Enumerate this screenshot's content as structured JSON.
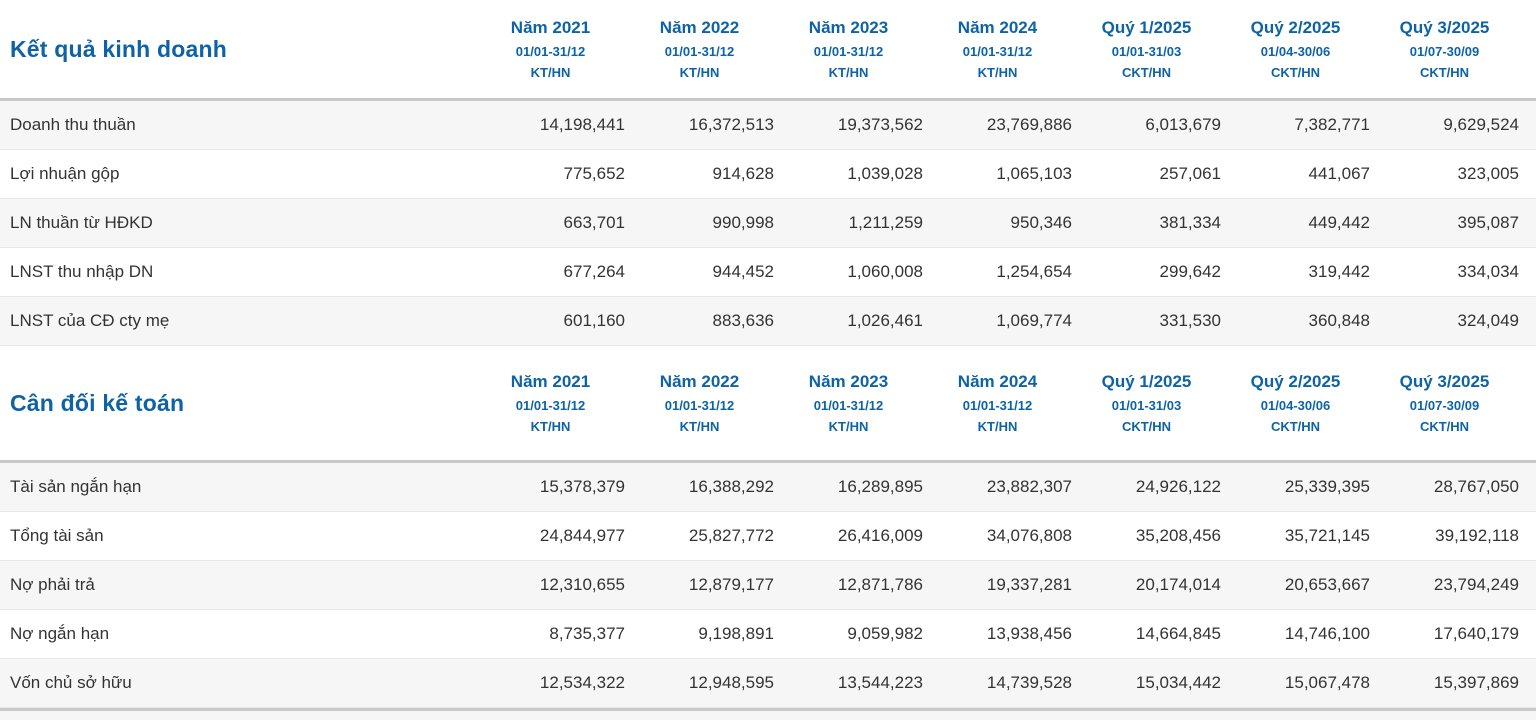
{
  "colors": {
    "header_blue": "#0d63a6",
    "body_text": "#333333",
    "row_alt_background": "#f6f6f6",
    "row_border": "#e8e8e8",
    "section_border": "#c9c9c9"
  },
  "sections": [
    {
      "title": "Kết quả kinh doanh",
      "columns": [
        {
          "label": "Năm 2021",
          "period": "01/01-31/12",
          "basis": "KT/HN"
        },
        {
          "label": "Năm 2022",
          "period": "01/01-31/12",
          "basis": "KT/HN"
        },
        {
          "label": "Năm 2023",
          "period": "01/01-31/12",
          "basis": "KT/HN"
        },
        {
          "label": "Năm 2024",
          "period": "01/01-31/12",
          "basis": "KT/HN"
        },
        {
          "label": "Quý 1/2025",
          "period": "01/01-31/03",
          "basis": "CKT/HN"
        },
        {
          "label": "Quý 2/2025",
          "period": "01/04-30/06",
          "basis": "CKT/HN"
        },
        {
          "label": "Quý 3/2025",
          "period": "01/07-30/09",
          "basis": "CKT/HN"
        }
      ],
      "rows": [
        {
          "label": "Doanh thu thuần",
          "values": [
            "14,198,441",
            "16,372,513",
            "19,373,562",
            "23,769,886",
            "6,013,679",
            "7,382,771",
            "9,629,524"
          ]
        },
        {
          "label": "Lợi nhuận gộp",
          "values": [
            "775,652",
            "914,628",
            "1,039,028",
            "1,065,103",
            "257,061",
            "441,067",
            "323,005"
          ]
        },
        {
          "label": "LN thuần từ HĐKD",
          "values": [
            "663,701",
            "990,998",
            "1,211,259",
            "950,346",
            "381,334",
            "449,442",
            "395,087"
          ]
        },
        {
          "label": "LNST thu nhập DN",
          "values": [
            "677,264",
            "944,452",
            "1,060,008",
            "1,254,654",
            "299,642",
            "319,442",
            "334,034"
          ]
        },
        {
          "label": "LNST của CĐ cty mẹ",
          "values": [
            "601,160",
            "883,636",
            "1,026,461",
            "1,069,774",
            "331,530",
            "360,848",
            "324,049"
          ]
        }
      ]
    },
    {
      "title": "Cân đối kế toán",
      "columns": [
        {
          "label": "Năm 2021",
          "period": "01/01-31/12",
          "basis": "KT/HN"
        },
        {
          "label": "Năm 2022",
          "period": "01/01-31/12",
          "basis": "KT/HN"
        },
        {
          "label": "Năm 2023",
          "period": "01/01-31/12",
          "basis": "KT/HN"
        },
        {
          "label": "Năm 2024",
          "period": "01/01-31/12",
          "basis": "KT/HN"
        },
        {
          "label": "Quý 1/2025",
          "period": "01/01-31/03",
          "basis": "CKT/HN"
        },
        {
          "label": "Quý 2/2025",
          "period": "01/04-30/06",
          "basis": "CKT/HN"
        },
        {
          "label": "Quý 3/2025",
          "period": "01/07-30/09",
          "basis": "CKT/HN"
        }
      ],
      "rows": [
        {
          "label": "Tài sản ngắn hạn",
          "values": [
            "15,378,379",
            "16,388,292",
            "16,289,895",
            "23,882,307",
            "24,926,122",
            "25,339,395",
            "28,767,050"
          ]
        },
        {
          "label": "Tổng tài sản",
          "values": [
            "24,844,977",
            "25,827,772",
            "26,416,009",
            "34,076,808",
            "35,208,456",
            "35,721,145",
            "39,192,118"
          ]
        },
        {
          "label": "Nợ phải trả",
          "values": [
            "12,310,655",
            "12,879,177",
            "12,871,786",
            "19,337,281",
            "20,174,014",
            "20,653,667",
            "23,794,249"
          ]
        },
        {
          "label": "Nợ ngắn hạn",
          "values": [
            "8,735,377",
            "9,198,891",
            "9,059,982",
            "13,938,456",
            "14,664,845",
            "14,746,100",
            "17,640,179"
          ]
        },
        {
          "label": "Vốn chủ sở hữu",
          "values": [
            "12,534,322",
            "12,948,595",
            "13,544,223",
            "14,739,528",
            "15,034,442",
            "15,067,478",
            "15,397,869"
          ]
        }
      ]
    }
  ]
}
